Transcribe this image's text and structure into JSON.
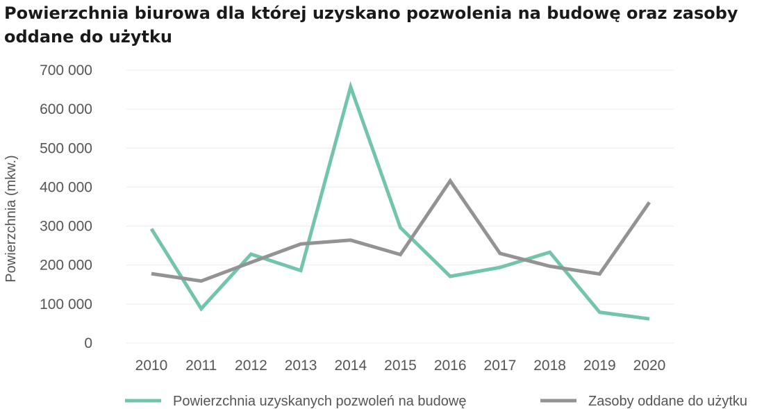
{
  "chart_data": {
    "type": "line",
    "title": "Powierzchnia biurowa dla której uzyskano pozwolenia na budowę oraz zasoby oddane do użytku",
    "xlabel": "",
    "ylabel": "Powierzchnia (mkw.)",
    "x": [
      "2010",
      "2011",
      "2012",
      "2013",
      "2014",
      "2015",
      "2016",
      "2017",
      "2018",
      "2019",
      "2020"
    ],
    "ylim": [
      0,
      700000
    ],
    "yticks": [
      0,
      100000,
      200000,
      300000,
      400000,
      500000,
      600000,
      700000
    ],
    "ytick_labels": [
      "0",
      "100 000",
      "200 000",
      "300 000",
      "400 000",
      "500 000",
      "600 000",
      "700 000"
    ],
    "grid": true,
    "legend_position": "bottom",
    "series": [
      {
        "name": "Powierzchnia uzyskanych pozwoleń na budowę",
        "color": "#72c4ad",
        "values": [
          293000,
          88000,
          228000,
          186000,
          657000,
          296000,
          171000,
          194000,
          233000,
          79000,
          62000
        ]
      },
      {
        "name": "Zasoby oddane do użytku",
        "color": "#939393",
        "values": [
          178000,
          159000,
          207000,
          254000,
          264000,
          227000,
          416000,
          230000,
          197000,
          177000,
          361000
        ]
      }
    ]
  }
}
